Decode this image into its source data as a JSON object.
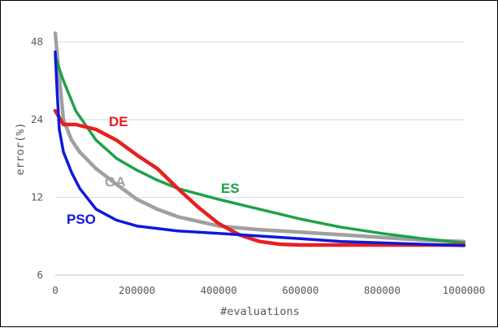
{
  "chart_data": {
    "type": "line",
    "title": "",
    "xlabel": "#evaluations",
    "ylabel": "error(%)",
    "x_ticks": [
      "0",
      "200000",
      "400000",
      "600000",
      "800000",
      "1000000"
    ],
    "y_ticks": [
      "6",
      "12",
      "24",
      "48"
    ],
    "y_scale": "log2",
    "xlim": [
      0,
      1000000
    ],
    "ylim": [
      6,
      60
    ],
    "grid": "horizontal",
    "legend": "inline labels",
    "series": [
      {
        "name": "DE",
        "color": "#e8201e",
        "x": [
          0,
          20000,
          50000,
          100000,
          150000,
          200000,
          250000,
          300000,
          350000,
          400000,
          450000,
          500000,
          550000,
          600000,
          700000,
          800000,
          900000,
          1000000
        ],
        "y": [
          26,
          23,
          23,
          22,
          20,
          17.5,
          15.5,
          13,
          11,
          9.5,
          8.6,
          8.1,
          7.9,
          7.85,
          7.85,
          7.85,
          7.85,
          7.85
        ]
      },
      {
        "name": "GA",
        "color": "#a0a0a0",
        "x": [
          0,
          10000,
          20000,
          40000,
          60000,
          100000,
          150000,
          200000,
          250000,
          300000,
          400000,
          500000,
          600000,
          700000,
          800000,
          900000,
          1000000
        ],
        "y": [
          52,
          35,
          24,
          20,
          18,
          15.5,
          13.5,
          11.8,
          10.8,
          10.1,
          9.3,
          9.0,
          8.8,
          8.6,
          8.4,
          8.2,
          8.1
        ]
      },
      {
        "name": "ES",
        "color": "#1fa14b",
        "x": [
          0,
          20000,
          50000,
          100000,
          150000,
          200000,
          250000,
          300000,
          400000,
          500000,
          600000,
          700000,
          800000,
          900000,
          1000000
        ],
        "y": [
          42,
          34,
          26,
          20,
          17,
          15.3,
          14,
          13,
          11.8,
          10.8,
          9.9,
          9.2,
          8.7,
          8.3,
          8.0
        ]
      },
      {
        "name": "PSO",
        "color": "#1018dc",
        "x": [
          0,
          5000,
          10000,
          20000,
          40000,
          60000,
          100000,
          150000,
          200000,
          300000,
          400000,
          500000,
          600000,
          700000,
          800000,
          900000,
          1000000
        ],
        "y": [
          44,
          30,
          22,
          18,
          15,
          13,
          10.8,
          9.8,
          9.3,
          8.9,
          8.7,
          8.5,
          8.3,
          8.1,
          8.0,
          7.9,
          7.8
        ]
      }
    ]
  }
}
